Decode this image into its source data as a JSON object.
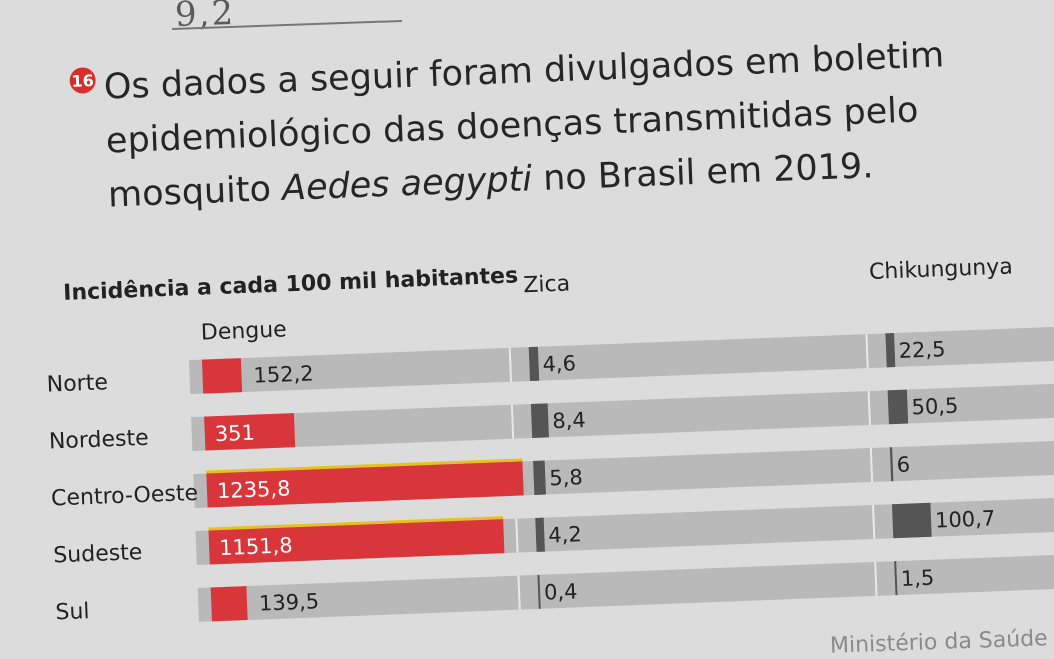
{
  "header": {
    "handwriting": "9,2",
    "question_number": "16",
    "question_lines": [
      "Os dados a seguir foram divulgados em boletim",
      "epidemiológico das doenças transmitidas pelo",
      "mosquito ",
      "Aedes aegypti",
      " no Brasil em 2019."
    ]
  },
  "chart_data": {
    "type": "bar",
    "title": "Incidência a cada 100 mil habitantes",
    "categories": [
      "Norte",
      "Nordeste",
      "Centro-Oeste",
      "Sudeste",
      "Sul"
    ],
    "series": [
      {
        "name": "Dengue",
        "values": [
          152.2,
          351,
          1235.8,
          1151.8,
          139.5
        ],
        "labels": [
          "152,2",
          "351",
          "1235,8",
          "1151,8",
          "139,5"
        ],
        "color": "#d8363a"
      },
      {
        "name": "Zica",
        "values": [
          4.6,
          8.4,
          5.8,
          4.2,
          0.4
        ],
        "labels": [
          "4,6",
          "8,4",
          "5,8",
          "4,2",
          "0,4"
        ],
        "color": "#555555"
      },
      {
        "name": "Chikungunya",
        "values": [
          22.5,
          50.5,
          6,
          100.7,
          1.5
        ],
        "labels": [
          "22,5",
          "50,5",
          "6",
          "100,7",
          "1,5"
        ],
        "color": "#555555"
      }
    ],
    "colors": {
      "dengue": "#d8363a",
      "zika": "#555555",
      "chikungunya": "#555555",
      "track": "#b9b9b9",
      "highlight": "#e6c21e"
    },
    "source": "Ministério da Saúde"
  }
}
